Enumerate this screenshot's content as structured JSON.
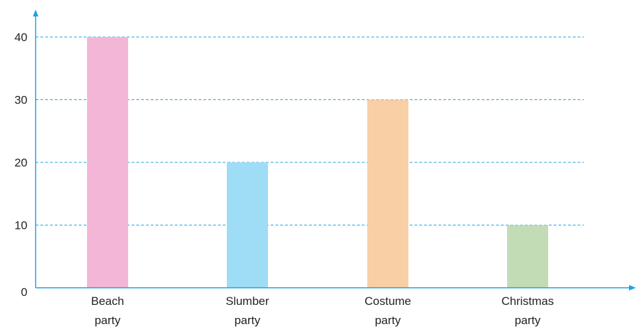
{
  "chart_data": {
    "type": "bar",
    "categories": [
      [
        "Beach",
        "party"
      ],
      [
        "Slumber",
        "party"
      ],
      [
        "Costume",
        "party"
      ],
      [
        "Christmas",
        "party"
      ]
    ],
    "values": [
      40,
      20,
      30,
      10
    ],
    "bar_colors": [
      "#f4b6d6",
      "#9fdcf6",
      "#f9cfa6",
      "#c2ddb6"
    ],
    "title": "",
    "xlabel": "",
    "ylabel": "",
    "ylim": [
      0,
      40
    ],
    "yticks": [
      0,
      10,
      20,
      30,
      40
    ],
    "grid": true,
    "axis_color": "#1aa3e0",
    "grid_color": "#1aa3e0"
  }
}
